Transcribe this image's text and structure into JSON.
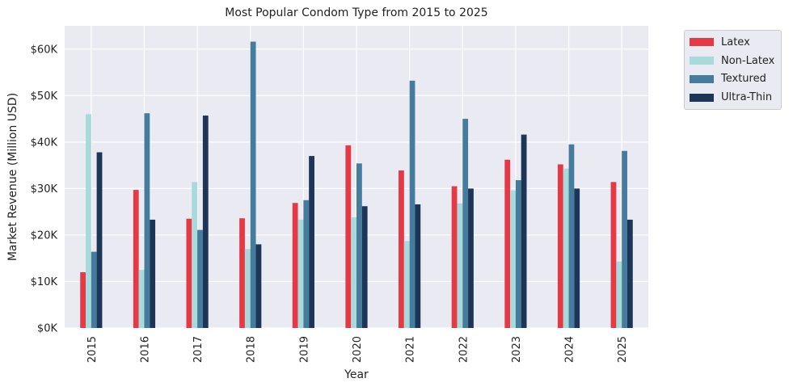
{
  "chart_data": {
    "type": "bar",
    "title": "Most Popular Condom Type from 2015 to 2025",
    "xlabel": "Year",
    "ylabel": "Market Revenue (Million USD)",
    "categories": [
      "2015",
      "2016",
      "2017",
      "2018",
      "2019",
      "2020",
      "2021",
      "2022",
      "2023",
      "2024",
      "2025"
    ],
    "series": [
      {
        "name": "Latex",
        "color": "#e63946",
        "values": [
          12000,
          29700,
          23500,
          23600,
          26900,
          39300,
          33900,
          30500,
          36200,
          35200,
          31400
        ]
      },
      {
        "name": "Non-Latex",
        "color": "#a8dadc",
        "values": [
          46000,
          12500,
          31400,
          17000,
          23300,
          23800,
          18700,
          26800,
          29600,
          34300,
          14300
        ]
      },
      {
        "name": "Textured",
        "color": "#457b9d",
        "values": [
          16400,
          46200,
          21100,
          61600,
          27500,
          35400,
          53200,
          45000,
          31800,
          39500,
          38100
        ]
      },
      {
        "name": "Ultra-Thin",
        "color": "#1d3557",
        "values": [
          37800,
          23300,
          45700,
          18000,
          37000,
          26200,
          26600,
          30000,
          41600,
          30000,
          23300
        ]
      }
    ],
    "ylim": [
      0,
      65000
    ],
    "yticks": [
      0,
      10000,
      20000,
      30000,
      40000,
      50000,
      60000
    ],
    "ytick_labels": [
      "$0K",
      "$10K",
      "$20K",
      "$30K",
      "$40K",
      "$50K",
      "$60K"
    ],
    "grid": true,
    "legend_position": "outside-top-right",
    "background": "#eaeaf2"
  }
}
